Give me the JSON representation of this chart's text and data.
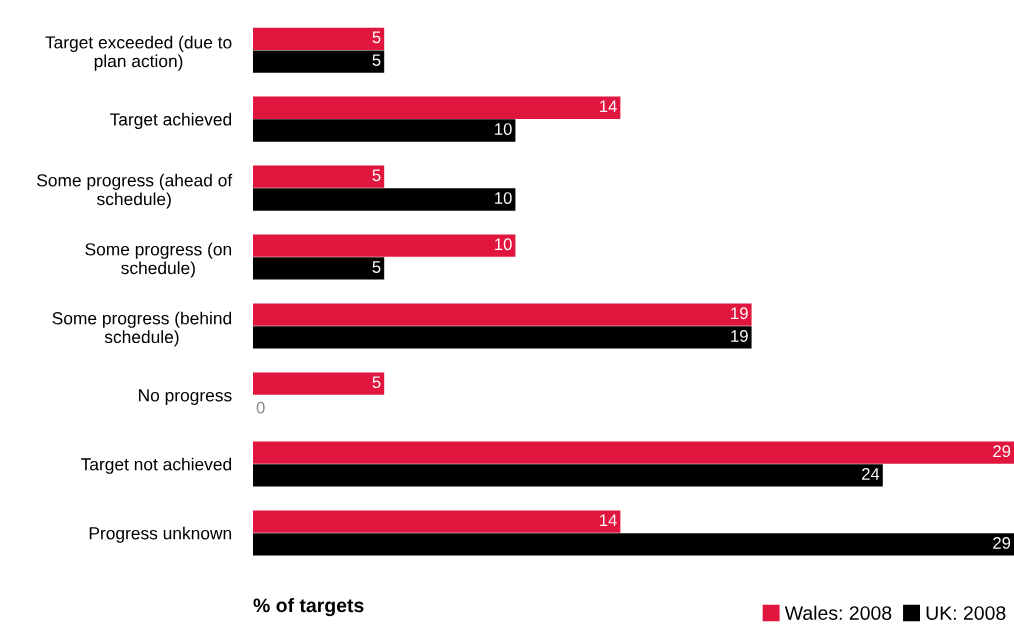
{
  "chart_data": {
    "type": "bar",
    "orientation": "horizontal",
    "xlabel": "% of targets",
    "categories": [
      "Target exceeded (due to\nplan action)",
      "Target achieved",
      "Some progress (ahead of\nschedule)",
      "Some progress (on\nschedule)",
      "Some progress (behind\nschedule)",
      "No progress",
      "Target not achieved",
      "Progress unknown"
    ],
    "series": [
      {
        "name": "Wales: 2008",
        "color": "#e0163f",
        "values": [
          5,
          14,
          5,
          10,
          19,
          5,
          29,
          14
        ]
      },
      {
        "name": "UK: 2008",
        "color": "#000000",
        "values": [
          5,
          10,
          10,
          5,
          19,
          0,
          24,
          29
        ]
      }
    ],
    "data_labels": true,
    "legend": "bottom right",
    "grid": false
  }
}
